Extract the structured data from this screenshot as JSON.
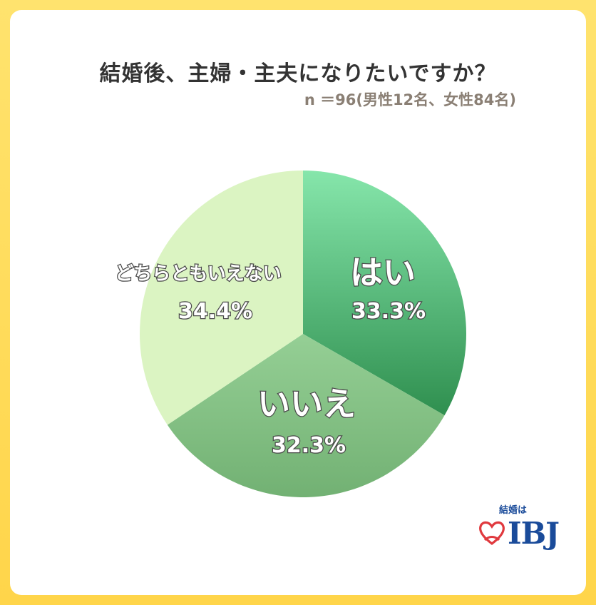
{
  "title": "結婚後、主婦・主夫になりたいですか？",
  "subtitle": "n ＝96(男性12名、女性84名)",
  "chart_data": {
    "type": "pie",
    "start_angle_deg": 0,
    "direction": "clockwise",
    "slices": [
      {
        "label": "はい",
        "value": 33.3,
        "value_label": "33.3%",
        "color_top": "#86e6ab",
        "color_bottom": "#2f8f4f"
      },
      {
        "label": "いいえ",
        "value": 32.3,
        "value_label": "32.3%",
        "color_top": "#95cf95",
        "color_bottom": "#72b173"
      },
      {
        "label": "どちらともいえない",
        "value": 34.4,
        "value_label": "34.4%",
        "color_top": "#dbf4c2",
        "color_bottom": "#dbf4c2"
      }
    ]
  },
  "logo": {
    "tagline": "結婚は",
    "name": "IBJ",
    "icon": "heart-icon",
    "color": "#1a4b9a",
    "heart_color": "#e0393e"
  }
}
